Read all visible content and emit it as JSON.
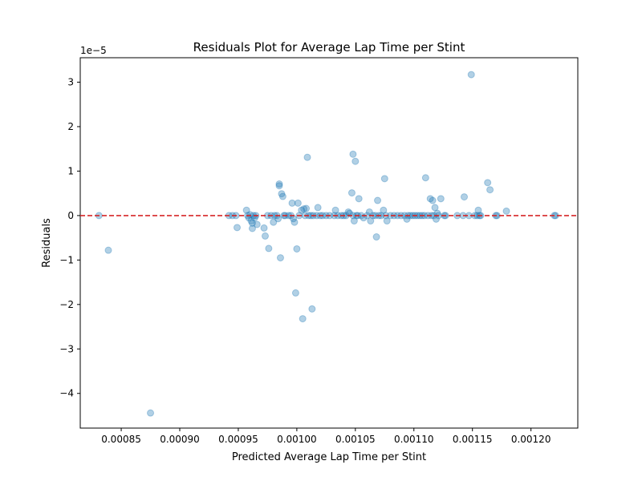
{
  "chart_data": {
    "type": "scatter",
    "title": "Residuals Plot for Average Lap Time per Stint",
    "xlabel": "Predicted Average Lap Time per Stint",
    "ylabel": "Residuals",
    "y_offset_text": "1e−5",
    "xlim": [
      0.000815,
      0.00124
    ],
    "ylim": [
      -4.78,
      3.55
    ],
    "x_ticks": [
      0.00085,
      0.0009,
      0.00095,
      0.001,
      0.00105,
      0.0011,
      0.00115,
      0.0012
    ],
    "x_tick_labels": [
      "0.00085",
      "0.00090",
      "0.00095",
      "0.00100",
      "0.00105",
      "0.00110",
      "0.00115",
      "0.00120"
    ],
    "y_ticks": [
      -4,
      -3,
      -2,
      -1,
      0,
      1,
      2,
      3
    ],
    "y_tick_labels": [
      "−4",
      "−3",
      "−2",
      "−1",
      "0",
      "1",
      "2",
      "3"
    ],
    "reference_line": {
      "y": 0,
      "color": "#d62728",
      "style": "dashed"
    },
    "point_color": "#1f77b4",
    "grid": false,
    "points": [
      [
        0.000831,
        0.0
      ],
      [
        0.000839,
        -0.78
      ],
      [
        0.000875,
        -4.44
      ],
      [
        0.000942,
        0.0
      ],
      [
        0.000945,
        0.0
      ],
      [
        0.000948,
        0.0
      ],
      [
        0.000949,
        -0.27
      ],
      [
        0.000957,
        0.12
      ],
      [
        0.000958,
        0.0
      ],
      [
        0.000959,
        -0.05
      ],
      [
        0.00096,
        0.02
      ],
      [
        0.000961,
        -0.12
      ],
      [
        0.000962,
        -0.17
      ],
      [
        0.000962,
        -0.29
      ],
      [
        0.000963,
        0.0
      ],
      [
        0.000964,
        -0.05
      ],
      [
        0.000965,
        0.0
      ],
      [
        0.000966,
        -0.2
      ],
      [
        0.000972,
        -0.28
      ],
      [
        0.000973,
        -0.46
      ],
      [
        0.000975,
        0.0
      ],
      [
        0.000976,
        -0.74
      ],
      [
        0.000978,
        0.0
      ],
      [
        0.00098,
        -0.15
      ],
      [
        0.000981,
        0.0
      ],
      [
        0.000983,
        0.0
      ],
      [
        0.000984,
        -0.07
      ],
      [
        0.000985,
        0.71
      ],
      [
        0.000985,
        0.67
      ],
      [
        0.000986,
        -0.95
      ],
      [
        0.000987,
        0.49
      ],
      [
        0.000988,
        0.43
      ],
      [
        0.000989,
        0.0
      ],
      [
        0.00099,
        0.0
      ],
      [
        0.000993,
        0.0
      ],
      [
        0.000995,
        0.0
      ],
      [
        0.000996,
        0.28
      ],
      [
        0.000997,
        -0.07
      ],
      [
        0.000998,
        -0.15
      ],
      [
        0.000999,
        -1.74
      ],
      [
        0.001,
        -0.75
      ],
      [
        0.001001,
        0.28
      ],
      [
        0.001002,
        0.0
      ],
      [
        0.001004,
        0.12
      ],
      [
        0.001005,
        -2.32
      ],
      [
        0.001006,
        0.15
      ],
      [
        0.001007,
        0.0
      ],
      [
        0.001008,
        0.16
      ],
      [
        0.001009,
        1.31
      ],
      [
        0.00101,
        0.0
      ],
      [
        0.001012,
        0.0
      ],
      [
        0.001013,
        -2.1
      ],
      [
        0.001014,
        0.0
      ],
      [
        0.001017,
        0.0
      ],
      [
        0.001018,
        0.18
      ],
      [
        0.00102,
        0.0
      ],
      [
        0.001022,
        0.0
      ],
      [
        0.001025,
        0.0
      ],
      [
        0.001028,
        0.0
      ],
      [
        0.001032,
        0.0
      ],
      [
        0.001033,
        0.12
      ],
      [
        0.001035,
        0.0
      ],
      [
        0.001038,
        0.0
      ],
      [
        0.00104,
        0.0
      ],
      [
        0.001042,
        0.0
      ],
      [
        0.001044,
        0.08
      ],
      [
        0.001045,
        0.05
      ],
      [
        0.001047,
        0.51
      ],
      [
        0.001048,
        0.0
      ],
      [
        0.001048,
        1.38
      ],
      [
        0.001049,
        -0.12
      ],
      [
        0.00105,
        1.22
      ],
      [
        0.001051,
        0.0
      ],
      [
        0.001052,
        0.0
      ],
      [
        0.001053,
        0.38
      ],
      [
        0.001055,
        0.0
      ],
      [
        0.001057,
        -0.05
      ],
      [
        0.00106,
        0.0
      ],
      [
        0.001062,
        0.08
      ],
      [
        0.001063,
        -0.12
      ],
      [
        0.001065,
        0.0
      ],
      [
        0.001067,
        0.0
      ],
      [
        0.001068,
        -0.48
      ],
      [
        0.001069,
        0.34
      ],
      [
        0.00107,
        0.0
      ],
      [
        0.001072,
        0.0
      ],
      [
        0.001074,
        0.12
      ],
      [
        0.001075,
        0.83
      ],
      [
        0.001076,
        0.0
      ],
      [
        0.001077,
        -0.12
      ],
      [
        0.00108,
        0.0
      ],
      [
        0.001083,
        0.0
      ],
      [
        0.001086,
        0.0
      ],
      [
        0.001089,
        0.0
      ],
      [
        0.001092,
        0.0
      ],
      [
        0.001094,
        -0.08
      ],
      [
        0.001095,
        0.0
      ],
      [
        0.001097,
        0.0
      ],
      [
        0.001099,
        0.0
      ],
      [
        0.001101,
        0.0
      ],
      [
        0.001103,
        0.0
      ],
      [
        0.001105,
        0.0
      ],
      [
        0.001107,
        0.0
      ],
      [
        0.001109,
        0.0
      ],
      [
        0.00111,
        0.85
      ],
      [
        0.001112,
        0.0
      ],
      [
        0.001114,
        0.38
      ],
      [
        0.001115,
        0.0
      ],
      [
        0.001116,
        0.34
      ],
      [
        0.001117,
        0.0
      ],
      [
        0.001118,
        0.18
      ],
      [
        0.001119,
        -0.08
      ],
      [
        0.00112,
        0.05
      ],
      [
        0.001121,
        0.0
      ],
      [
        0.001123,
        0.38
      ],
      [
        0.001126,
        0.0
      ],
      [
        0.001127,
        0.0
      ],
      [
        0.001137,
        0.0
      ],
      [
        0.001142,
        0.0
      ],
      [
        0.001143,
        0.42
      ],
      [
        0.001147,
        0.0
      ],
      [
        0.001149,
        3.17
      ],
      [
        0.001152,
        0.0
      ],
      [
        0.001154,
        0.0
      ],
      [
        0.001155,
        0.12
      ],
      [
        0.001156,
        0.0
      ],
      [
        0.001157,
        0.0
      ],
      [
        0.001163,
        0.74
      ],
      [
        0.001165,
        0.58
      ],
      [
        0.00117,
        0.0
      ],
      [
        0.001171,
        0.0
      ],
      [
        0.001179,
        0.1
      ],
      [
        0.00122,
        0.0
      ],
      [
        0.001221,
        0.0
      ]
    ]
  }
}
